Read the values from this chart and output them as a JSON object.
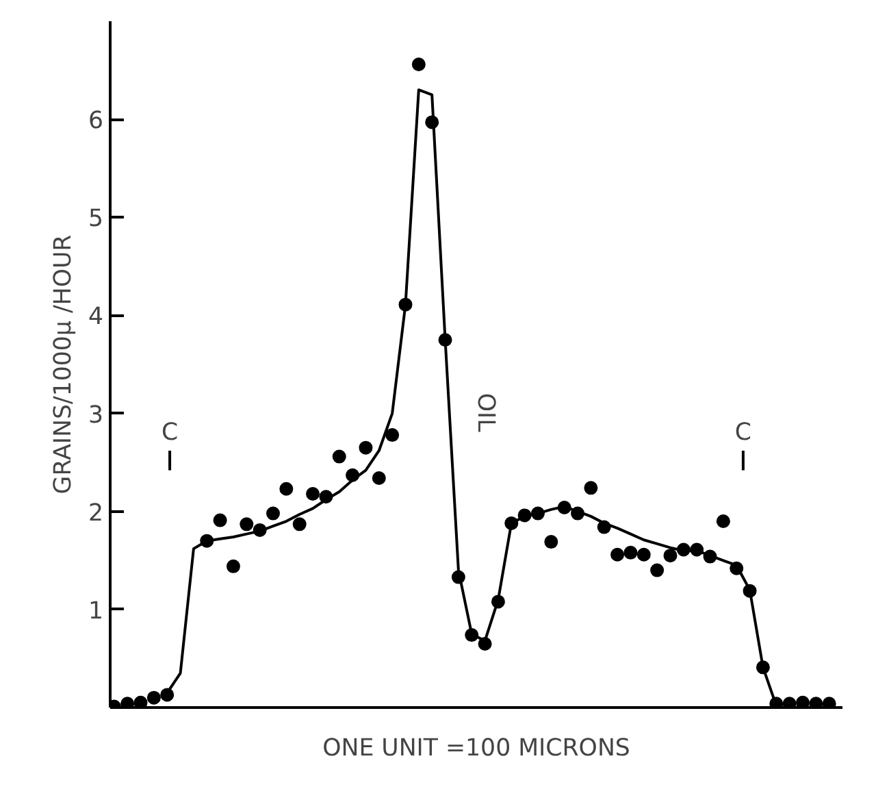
{
  "chart_data": {
    "type": "scatter",
    "xlabel": "ONE UNIT =100 MICRONS",
    "ylabel": "GRAINS/1000μ /HOUR",
    "categories": [
      null,
      null,
      null,
      null,
      null,
      null,
      null,
      null,
      null,
      null,
      null,
      null,
      null,
      null,
      null,
      null,
      null,
      null,
      null,
      null,
      null,
      null,
      null,
      null,
      null,
      null,
      null,
      null,
      null,
      null,
      null,
      null,
      null,
      null,
      null,
      null,
      null,
      null,
      null,
      null,
      null,
      null,
      null,
      null,
      null,
      null,
      null,
      null,
      null,
      null,
      null,
      null,
      null,
      null,
      null
    ],
    "ylim": [
      0,
      7
    ],
    "yticks": [
      1,
      2,
      3,
      4,
      5,
      6
    ],
    "grid": false,
    "tick_labels": "y",
    "series": [
      {
        "color": "#000000",
        "marker": "circle",
        "values": [
          0.01,
          0.04,
          0.05,
          0.1,
          0.13,
          null,
          null,
          1.7,
          1.91,
          1.44,
          1.87,
          1.81,
          1.98,
          2.23,
          1.87,
          2.18,
          2.15,
          2.56,
          2.37,
          2.65,
          2.34,
          2.78,
          4.11,
          6.56,
          5.97,
          3.75,
          1.33,
          0.74,
          0.65,
          1.08,
          1.88,
          1.96,
          1.98,
          1.69,
          2.04,
          1.98,
          2.24,
          1.84,
          1.56,
          1.58,
          1.56,
          1.4,
          1.55,
          1.61,
          1.61,
          1.54,
          1.9,
          1.42,
          1.19,
          0.41,
          0.04,
          0.04,
          0.05,
          0.04,
          0.04
        ]
      },
      {
        "type": "line",
        "color": "#000000",
        "line_style": "solid",
        "values": [
          null,
          null,
          null,
          null,
          0.15,
          0.35,
          1.62,
          1.7,
          1.72,
          1.74,
          1.77,
          1.8,
          1.85,
          1.9,
          1.97,
          2.03,
          2.12,
          2.2,
          2.32,
          2.42,
          2.62,
          3.0,
          4.11,
          6.3,
          6.25,
          3.75,
          1.4,
          0.75,
          0.68,
          1.1,
          1.88,
          1.95,
          1.98,
          2.02,
          2.05,
          2.0,
          1.95,
          1.88,
          1.83,
          1.77,
          1.71,
          1.67,
          1.63,
          1.6,
          1.6,
          1.55,
          1.5,
          1.45,
          1.2,
          0.41,
          0.02,
          null,
          null,
          null,
          null
        ]
      }
    ],
    "annotations": [
      "C",
      "OIL",
      "C"
    ]
  }
}
